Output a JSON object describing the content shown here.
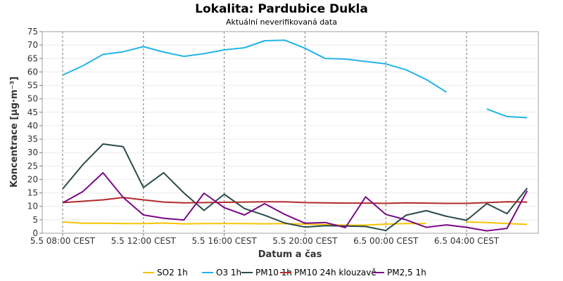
{
  "chart_data": {
    "type": "line",
    "title": "Lokalita: Pardubice Dukla",
    "subtitle": "Aktuální neverifikovaná data",
    "xlabel": "Datum a čas",
    "ylabel": "Koncentrace [µg·m⁻³]",
    "ylim": [
      0,
      75
    ],
    "yticks": [
      0,
      5,
      10,
      15,
      20,
      25,
      30,
      35,
      40,
      45,
      50,
      55,
      60,
      65,
      70,
      75
    ],
    "x": [
      "5.5 08:00",
      "5.5 09:00",
      "5.5 10:00",
      "5.5 11:00",
      "5.5 12:00",
      "5.5 13:00",
      "5.5 14:00",
      "5.5 15:00",
      "5.5 16:00",
      "5.5 17:00",
      "5.5 18:00",
      "5.5 19:00",
      "5.5 20:00",
      "5.5 21:00",
      "5.5 22:00",
      "5.5 23:00",
      "6.5 00:00",
      "6.5 01:00",
      "6.5 02:00",
      "6.5 03:00",
      "6.5 04:00",
      "6.5 05:00",
      "6.5 06:00",
      "6.5 07:00"
    ],
    "xticks": [
      {
        "at": 0,
        "label": "5.5 08:00 CEST"
      },
      {
        "at": 4,
        "label": "5.5 12:00 CEST"
      },
      {
        "at": 8,
        "label": "5.5 16:00 CEST"
      },
      {
        "at": 12,
        "label": "5.5 20:00 CEST"
      },
      {
        "at": 16,
        "label": "6.5 00:00 CEST"
      },
      {
        "at": 20,
        "label": "6.5 04:00 CEST"
      }
    ],
    "grid": true,
    "legend_position": "bottom",
    "series": [
      {
        "name": "SO2 1h",
        "color": "#f5c400",
        "values": [
          4.2,
          3.7,
          3.7,
          3.6,
          3.6,
          3.8,
          3.5,
          3.6,
          3.6,
          3.6,
          3.5,
          3.6,
          3.4,
          3.2,
          3.0,
          3.0,
          3.4,
          3.6,
          3.6,
          null,
          4.2,
          4.0,
          3.6,
          3.3
        ]
      },
      {
        "name": "O3 1h",
        "color": "#22b4e8",
        "values": [
          58.8,
          62.3,
          66.5,
          67.5,
          69.4,
          67.4,
          65.8,
          66.8,
          68.2,
          69.0,
          71.6,
          71.8,
          68.8,
          65.0,
          64.8,
          63.9,
          63.0,
          60.8,
          57.2,
          52.5,
          null,
          46.2,
          43.4,
          43.0
        ]
      },
      {
        "name": "PM10 1h",
        "color": "#2a4a4a",
        "values": [
          16.5,
          25.5,
          33.2,
          32.2,
          17.0,
          22.5,
          15.0,
          8.5,
          14.5,
          9.2,
          6.7,
          3.8,
          2.3,
          2.8,
          2.7,
          2.5,
          1.0,
          6.7,
          8.4,
          6.3,
          4.8,
          11.0,
          7.3,
          16.8
        ]
      },
      {
        "name": "PM10 24h klouzavě",
        "color": "#b22a2a",
        "values": [
          11.4,
          11.9,
          12.4,
          13.3,
          12.4,
          11.6,
          11.3,
          11.4,
          11.5,
          11.6,
          11.7,
          11.7,
          11.4,
          11.3,
          11.2,
          11.2,
          11.1,
          11.3,
          11.2,
          11.1,
          11.1,
          11.4,
          11.7,
          11.6
        ]
      },
      {
        "name": "PM2,5 1h",
        "color": "#7a0a86",
        "values": [
          11.3,
          15.5,
          22.5,
          13.3,
          6.8,
          5.6,
          4.9,
          14.9,
          9.5,
          6.8,
          11.0,
          7.0,
          3.7,
          4.0,
          2.1,
          13.5,
          7.0,
          5.0,
          2.2,
          3.1,
          2.2,
          0.9,
          1.8,
          15.8
        ]
      }
    ]
  }
}
